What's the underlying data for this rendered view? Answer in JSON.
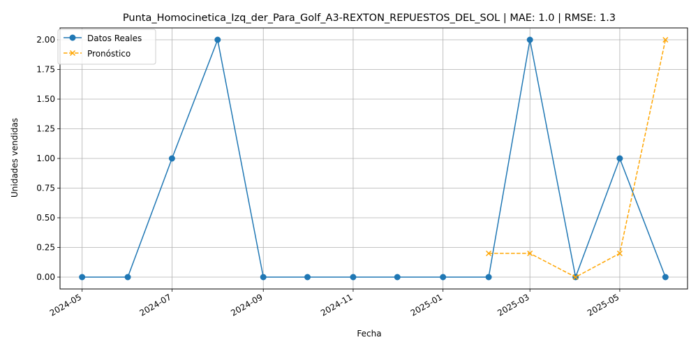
{
  "chart_data": {
    "type": "line",
    "title": "Punta_Homocinetica_Izq_der_Para_Golf_A3-REXTON_REPUESTOS_DEL_SOL | MAE: 1.0 | RMSE: 1.3",
    "xlabel": "Fecha",
    "ylabel": "Unidades vendidas",
    "ylim": [
      -0.1,
      2.1
    ],
    "xlim": [
      "2024-04-16",
      "2025-06-16"
    ],
    "x_ticks": [
      "2024-05",
      "2024-07",
      "2024-09",
      "2024-11",
      "2025-01",
      "2025-03",
      "2025-05"
    ],
    "y_ticks": [
      "0.00",
      "0.25",
      "0.50",
      "0.75",
      "1.00",
      "1.25",
      "1.50",
      "1.75",
      "2.00"
    ],
    "grid": true,
    "legend_position": "top-left",
    "series": [
      {
        "name": "Datos Reales",
        "color": "#1f77b4",
        "marker": "circle",
        "linestyle": "solid",
        "x": [
          "2024-05-01",
          "2024-06-01",
          "2024-07-01",
          "2024-08-01",
          "2024-09-01",
          "2024-10-01",
          "2024-11-01",
          "2024-12-01",
          "2025-01-01",
          "2025-02-01",
          "2025-03-01",
          "2025-04-01",
          "2025-05-01",
          "2025-06-01"
        ],
        "y": [
          0,
          0,
          1,
          2,
          0,
          0,
          0,
          0,
          0,
          0,
          2,
          0,
          1,
          0
        ]
      },
      {
        "name": "Pronóstico",
        "color": "#ffa500",
        "marker": "x",
        "linestyle": "dashed",
        "x": [
          "2025-02-01",
          "2025-03-01",
          "2025-04-01",
          "2025-05-01",
          "2025-06-01"
        ],
        "y": [
          0.2,
          0.2,
          0.0,
          0.2,
          2.0
        ]
      }
    ]
  }
}
